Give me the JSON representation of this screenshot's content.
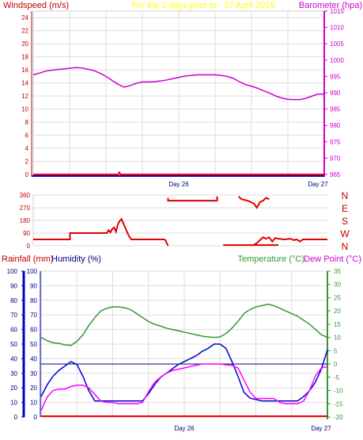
{
  "title": "For the 2 days prior to : 27 April 2019",
  "colors": {
    "title": "#ffff00",
    "wind": "#c00000",
    "baro": "#cc00cc",
    "axis_blue": "#0000cc",
    "red": "#ff0000",
    "dir": "#dd0000",
    "temp": "#339933",
    "dew": "#ff00ff",
    "hum": "#0000cc",
    "rain": "#ff0000",
    "label_blue": "#000080",
    "grid": "#dddddd"
  },
  "chart_data": [
    {
      "type": "line",
      "name": "wind-baro",
      "ylabel_left": "Windspeed (m/s)",
      "ylabel_right": "Barometer (hpa)",
      "ylim_left": [
        0,
        25
      ],
      "yticks_left": [
        0,
        2,
        4,
        6,
        8,
        10,
        12,
        14,
        16,
        18,
        20,
        22,
        24
      ],
      "ylim_right": [
        965,
        1015
      ],
      "yticks_right": [
        965,
        970,
        975,
        980,
        985,
        990,
        995,
        1000,
        1005,
        1010,
        1015
      ],
      "xlim": [
        0,
        48
      ],
      "xtick_labels": [
        {
          "x": 24,
          "label": "Day 26"
        },
        {
          "x": 48,
          "label": "Day 27"
        }
      ],
      "series": [
        {
          "axis": "right",
          "x": [
            0,
            1,
            2,
            3,
            4,
            5,
            6,
            7,
            8,
            9,
            10,
            11,
            12,
            13,
            14,
            15,
            16,
            17,
            18,
            19,
            20,
            21,
            22,
            23,
            24,
            25,
            26,
            27,
            28,
            29,
            30,
            31,
            32,
            33,
            34,
            35,
            36,
            37,
            38,
            39,
            40,
            41,
            42,
            43,
            44,
            45,
            46,
            47,
            48
          ],
          "values": [
            995.5,
            996.0,
            996.6,
            996.9,
            997.1,
            997.3,
            997.5,
            997.7,
            997.6,
            997.2,
            996.8,
            996.0,
            995.0,
            993.8,
            992.6,
            991.7,
            992.2,
            992.9,
            993.3,
            993.3,
            993.4,
            993.6,
            993.9,
            994.3,
            994.7,
            995.1,
            995.3,
            995.5,
            995.5,
            995.5,
            995.5,
            995.3,
            995.0,
            994.4,
            993.4,
            992.5,
            992.0,
            991.4,
            990.6,
            989.9,
            989.0,
            988.4,
            988.0,
            987.9,
            987.9,
            988.3,
            989.0,
            989.6,
            989.6
          ]
        },
        {
          "axis": "left",
          "x": [
            0,
            14,
            14.2,
            14.4,
            48
          ],
          "values": [
            0,
            0,
            0.3,
            0,
            0
          ]
        }
      ]
    },
    {
      "type": "scatter",
      "name": "wind-direction",
      "ylim": [
        0,
        360
      ],
      "yticks": [
        0,
        90,
        180,
        270,
        360
      ],
      "right_labels": [
        "N",
        "W",
        "S",
        "E",
        "N"
      ],
      "xlim": [
        0,
        48
      ],
      "segments": [
        {
          "x": [
            0,
            6,
            6,
            12,
            12.3,
            12.6,
            12.9,
            13.2,
            13.5,
            13.8,
            14.1,
            14.4,
            14.7,
            15,
            15.3,
            15.6,
            16,
            18,
            21.5
          ],
          "values": [
            45,
            45,
            90,
            90,
            110,
            95,
            120,
            130,
            100,
            150,
            175,
            190,
            160,
            130,
            100,
            70,
            45,
            45,
            45
          ]
        },
        {
          "x": [
            21.5,
            22
          ],
          "values": [
            45,
            0
          ]
        },
        {
          "x": [
            22,
            22,
            30,
            30
          ],
          "values": [
            340,
            320,
            320,
            350
          ]
        },
        {
          "x": [
            31,
            36,
            39.5,
            40
          ],
          "values": [
            5,
            5,
            5,
            5
          ]
        },
        {
          "x": [
            33.5,
            34,
            35,
            35.5,
            36,
            36.5,
            37,
            37.5,
            38,
            38.5
          ],
          "values": [
            350,
            330,
            320,
            310,
            300,
            270,
            310,
            320,
            340,
            330
          ]
        },
        {
          "x": [
            36,
            36.5,
            37,
            37.5,
            38,
            38.5,
            39,
            39.5,
            40,
            41,
            42,
            42.5,
            43,
            43.5,
            44,
            46,
            48
          ],
          "values": [
            5,
            20,
            40,
            60,
            50,
            60,
            30,
            55,
            50,
            45,
            50,
            40,
            45,
            30,
            45,
            45,
            45
          ]
        }
      ]
    },
    {
      "type": "line",
      "name": "temp-humidity",
      "ylabel_left": "Rainfall (mm)",
      "ylabel_left2": "Humidity (%)",
      "ylabel_right": "Temperature (°C)",
      "ylabel_right2": "Dew Point (°C)",
      "ylim_left": [
        0,
        100
      ],
      "yticks_left": [
        0,
        10,
        20,
        30,
        40,
        50,
        60,
        70,
        80,
        90,
        100
      ],
      "ylim_right": [
        -20,
        35
      ],
      "yticks_right": [
        -20,
        -15,
        -10,
        -5,
        0,
        5,
        10,
        15,
        20,
        25,
        30,
        35
      ],
      "xlim": [
        0,
        48
      ],
      "xtick_labels": [
        {
          "x": 24,
          "label": "Day 26"
        },
        {
          "x": 48,
          "label": "Day 27"
        }
      ],
      "series": [
        {
          "axis": "right",
          "color_key": "temp",
          "x": [
            0,
            1,
            2,
            3,
            4,
            5,
            6,
            7,
            8,
            9,
            10,
            11,
            12,
            13,
            14,
            15,
            16,
            17,
            18,
            19,
            20,
            21,
            22,
            23,
            24,
            25,
            26,
            27,
            28,
            29,
            30,
            31,
            32,
            33,
            34,
            35,
            36,
            37,
            38,
            39,
            40,
            41,
            42,
            43,
            44,
            45,
            46,
            47,
            48
          ],
          "values": [
            10.0,
            8.8,
            8.0,
            7.8,
            7.2,
            7.0,
            8.5,
            11.0,
            14.5,
            17.5,
            20.0,
            21.0,
            21.5,
            21.5,
            21.2,
            20.5,
            19.0,
            17.5,
            16.0,
            15.0,
            14.3,
            13.5,
            13.0,
            12.5,
            12.0,
            11.5,
            11.0,
            10.5,
            10.2,
            10.0,
            10.2,
            11.5,
            13.5,
            16.0,
            19.0,
            20.5,
            21.5,
            22.0,
            22.5,
            22.0,
            21.0,
            20.0,
            19.0,
            18.0,
            16.5,
            15.0,
            13.0,
            11.0,
            10.0
          ]
        },
        {
          "axis": "left",
          "color_key": "hum",
          "x": [
            0,
            1,
            2,
            3,
            4,
            5,
            6,
            7,
            8,
            9,
            10,
            11,
            12,
            13,
            14,
            15,
            16,
            17,
            18,
            19,
            20,
            21,
            22,
            23,
            24,
            25,
            26,
            27,
            28,
            29,
            30,
            31,
            32,
            33,
            34,
            35,
            36,
            37,
            38,
            39,
            40,
            41,
            42,
            43,
            44,
            45,
            46,
            47,
            48
          ],
          "values": [
            14,
            22,
            28,
            32,
            35,
            38,
            36,
            28,
            18,
            11,
            11,
            11,
            11,
            11,
            11,
            11,
            11,
            11,
            16,
            22,
            27,
            30,
            33,
            36,
            38,
            40,
            42,
            45,
            47,
            50,
            50,
            47,
            38,
            28,
            17,
            13,
            12,
            11,
            11,
            11,
            11,
            11,
            11,
            11,
            14,
            18,
            24,
            33,
            46
          ]
        },
        {
          "axis": "right",
          "color_key": "dew",
          "x": [
            0,
            1,
            2,
            3,
            4,
            5,
            6,
            7,
            8,
            9,
            10,
            11,
            12,
            13,
            14,
            15,
            16,
            17,
            18,
            19,
            20,
            21,
            22,
            23,
            24,
            25,
            26,
            27,
            28,
            29,
            30,
            31,
            32,
            33,
            34,
            35,
            36,
            37,
            38,
            39,
            40,
            41,
            42,
            43,
            44,
            45,
            46,
            47,
            48
          ],
          "values": [
            -17.5,
            -12.5,
            -10.0,
            -9.5,
            -9.5,
            -8.5,
            -8.0,
            -8.0,
            -9.0,
            -11.5,
            -14.0,
            -14.5,
            -14.5,
            -15.0,
            -15.0,
            -15.0,
            -15.0,
            -14.5,
            -10.5,
            -7.0,
            -5.0,
            -3.5,
            -2.5,
            -2.0,
            -1.5,
            -1.0,
            -0.5,
            0.0,
            0.0,
            0.0,
            0.0,
            -0.3,
            -0.5,
            -1.5,
            -6.0,
            -10.5,
            -13.0,
            -13.0,
            -13.0,
            -13.0,
            -14.5,
            -15.0,
            -15.0,
            -15.0,
            -14.0,
            -10.0,
            -4.5,
            -1.5,
            -1.0
          ]
        }
      ],
      "reference_line": {
        "axis": "right",
        "value": 0,
        "color_key": "label_blue"
      },
      "rainfall": {
        "axis": "left",
        "value": 0
      }
    }
  ]
}
